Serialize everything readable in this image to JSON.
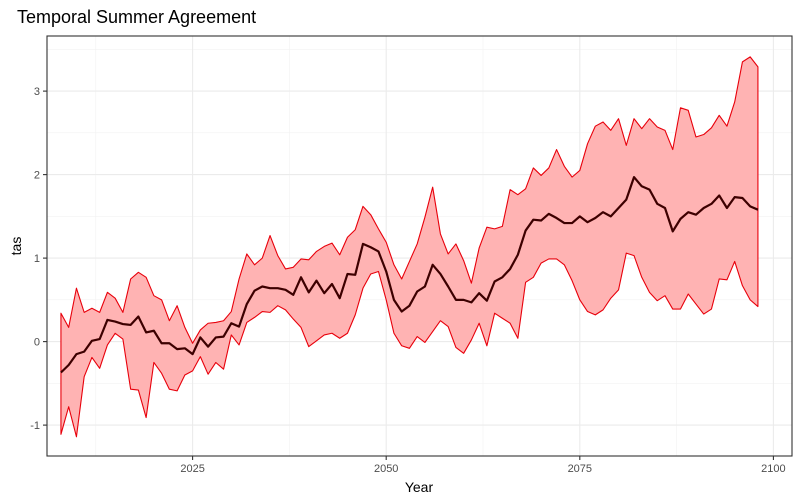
{
  "chart_data": {
    "type": "area",
    "title": "Temporal Summer Agreement",
    "xlabel": "Year",
    "ylabel": "tas",
    "xlim": [
      2006.2,
      2102.4
    ],
    "ylim": [
      -1.37,
      3.66
    ],
    "x_ticks": [
      2025,
      2050,
      2075,
      2100
    ],
    "y_ticks": [
      -1,
      0,
      1,
      2,
      3
    ],
    "x_tick_labels": [
      "2025",
      "2050",
      "2075",
      "2100"
    ],
    "y_tick_labels": [
      "-1",
      "0",
      "1",
      "2",
      "3"
    ],
    "grid": true,
    "legend": "none",
    "colors": {
      "band_fill": "#ffb3b3",
      "band_edge": "#e8000b",
      "mean_line": "#3d0000"
    },
    "x": [
      2008,
      2009,
      2010,
      2011,
      2012,
      2013,
      2014,
      2015,
      2016,
      2017,
      2018,
      2019,
      2020,
      2021,
      2022,
      2023,
      2024,
      2025,
      2026,
      2027,
      2028,
      2029,
      2030,
      2031,
      2032,
      2033,
      2034,
      2035,
      2036,
      2037,
      2038,
      2039,
      2040,
      2041,
      2042,
      2043,
      2044,
      2045,
      2046,
      2047,
      2048,
      2049,
      2050,
      2051,
      2052,
      2053,
      2054,
      2055,
      2056,
      2057,
      2058,
      2059,
      2060,
      2061,
      2062,
      2063,
      2064,
      2065,
      2066,
      2067,
      2068,
      2069,
      2070,
      2071,
      2072,
      2073,
      2074,
      2075,
      2076,
      2077,
      2078,
      2079,
      2080,
      2081,
      2082,
      2083,
      2084,
      2085,
      2086,
      2087,
      2088,
      2089,
      2090,
      2091,
      2092,
      2093,
      2094,
      2095,
      2096,
      2097,
      2098
    ],
    "series": [
      {
        "role": "mean",
        "values": [
          -0.37,
          -0.28,
          -0.15,
          -0.12,
          0.01,
          0.03,
          0.26,
          0.24,
          0.21,
          0.2,
          0.3,
          0.11,
          0.13,
          -0.02,
          -0.02,
          -0.09,
          -0.08,
          -0.15,
          0.05,
          -0.06,
          0.05,
          0.06,
          0.22,
          0.18,
          0.45,
          0.61,
          0.66,
          0.64,
          0.64,
          0.62,
          0.56,
          0.77,
          0.59,
          0.73,
          0.58,
          0.69,
          0.52,
          0.81,
          0.8,
          1.17,
          1.13,
          1.08,
          0.84,
          0.5,
          0.36,
          0.43,
          0.6,
          0.66,
          0.92,
          0.81,
          0.66,
          0.5,
          0.5,
          0.47,
          0.58,
          0.49,
          0.72,
          0.77,
          0.87,
          1.04,
          1.33,
          1.46,
          1.45,
          1.53,
          1.48,
          1.42,
          1.42,
          1.5,
          1.43,
          1.48,
          1.55,
          1.5,
          1.6,
          1.7,
          1.97,
          1.86,
          1.82,
          1.65,
          1.6,
          1.32,
          1.47,
          1.55,
          1.52,
          1.6,
          1.65,
          1.75,
          1.6,
          1.73,
          1.72,
          1.62,
          1.58
        ]
      },
      {
        "role": "upper",
        "values": [
          0.34,
          0.17,
          0.64,
          0.35,
          0.4,
          0.35,
          0.59,
          0.52,
          0.35,
          0.75,
          0.83,
          0.77,
          0.55,
          0.5,
          0.25,
          0.43,
          0.17,
          -0.02,
          0.14,
          0.22,
          0.23,
          0.25,
          0.36,
          0.75,
          1.05,
          0.92,
          1.0,
          1.27,
          1.03,
          0.87,
          0.89,
          0.99,
          0.98,
          1.08,
          1.14,
          1.18,
          1.04,
          1.25,
          1.34,
          1.62,
          1.52,
          1.35,
          1.19,
          0.92,
          0.75,
          0.96,
          1.17,
          1.49,
          1.85,
          1.29,
          1.05,
          1.17,
          0.97,
          0.7,
          1.12,
          1.37,
          1.35,
          1.38,
          1.82,
          1.76,
          1.83,
          2.08,
          1.99,
          2.08,
          2.3,
          2.1,
          1.97,
          2.05,
          2.37,
          2.58,
          2.63,
          2.53,
          2.67,
          2.35,
          2.67,
          2.55,
          2.67,
          2.57,
          2.53,
          2.3,
          2.8,
          2.77,
          2.45,
          2.48,
          2.56,
          2.71,
          2.58,
          2.87,
          3.35,
          3.41,
          3.29
        ]
      },
      {
        "role": "lower",
        "values": [
          -1.11,
          -0.78,
          -1.14,
          -0.42,
          -0.19,
          -0.32,
          -0.04,
          0.1,
          0.03,
          -0.57,
          -0.58,
          -0.91,
          -0.25,
          -0.38,
          -0.57,
          -0.59,
          -0.4,
          -0.35,
          -0.18,
          -0.39,
          -0.25,
          -0.33,
          0.08,
          -0.04,
          0.23,
          0.29,
          0.36,
          0.35,
          0.43,
          0.38,
          0.27,
          0.17,
          -0.06,
          0.01,
          0.08,
          0.1,
          0.04,
          0.1,
          0.32,
          0.64,
          0.81,
          0.84,
          0.5,
          0.1,
          -0.05,
          -0.08,
          0.06,
          -0.01,
          0.12,
          0.25,
          0.18,
          -0.07,
          -0.14,
          0.02,
          0.22,
          -0.05,
          0.34,
          0.28,
          0.22,
          0.04,
          0.71,
          0.77,
          0.94,
          0.99,
          0.99,
          0.92,
          0.73,
          0.5,
          0.36,
          0.32,
          0.38,
          0.52,
          0.62,
          1.06,
          1.03,
          0.77,
          0.59,
          0.49,
          0.55,
          0.39,
          0.39,
          0.57,
          0.45,
          0.33,
          0.39,
          0.75,
          0.74,
          0.96,
          0.67,
          0.5,
          0.42
        ]
      }
    ]
  }
}
